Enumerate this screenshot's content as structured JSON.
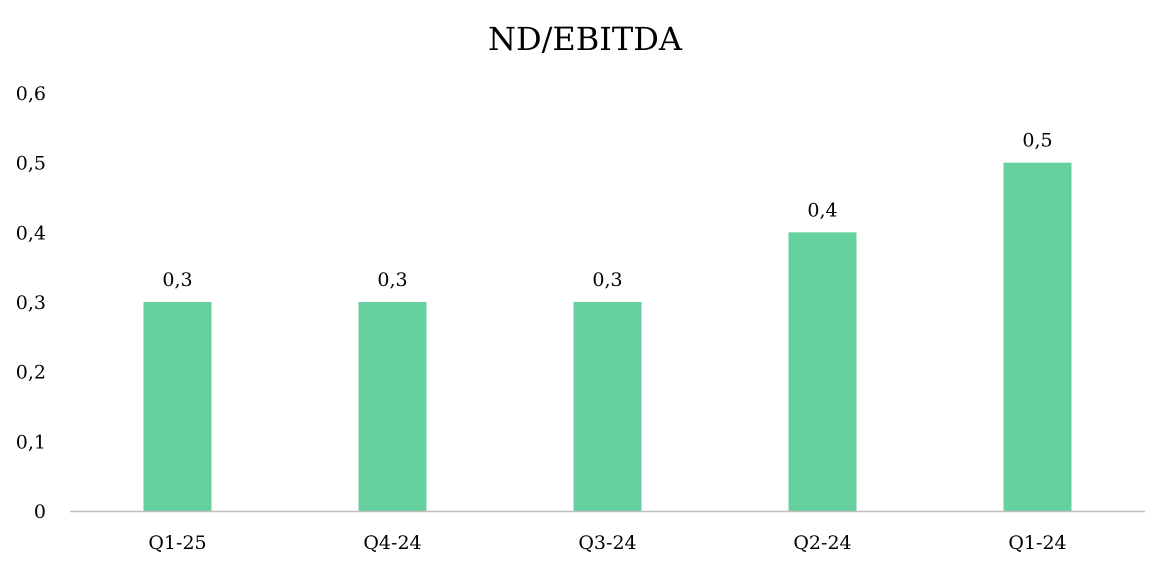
{
  "chart_data": {
    "type": "bar",
    "title": "ND/EBITDA",
    "categories": [
      "Q1-25",
      "Q4-24",
      "Q3-24",
      "Q2-24",
      "Q1-24"
    ],
    "values": [
      0.3,
      0.3,
      0.3,
      0.4,
      0.5
    ],
    "data_labels": [
      "0,3",
      "0,3",
      "0,3",
      "0,4",
      "0,5"
    ],
    "yticks": [
      0,
      0.1,
      0.2,
      0.3,
      0.4,
      0.5,
      0.6
    ],
    "ytick_labels": [
      "0",
      "0,1",
      "0,2",
      "0,3",
      "0,4",
      "0,5",
      "0,6"
    ],
    "ylim": [
      0,
      0.6
    ],
    "xlabel": "",
    "ylabel": "",
    "grid": false,
    "legend": "none",
    "bar_color": "#66d19e",
    "axis_color": "#bfbfbf"
  }
}
